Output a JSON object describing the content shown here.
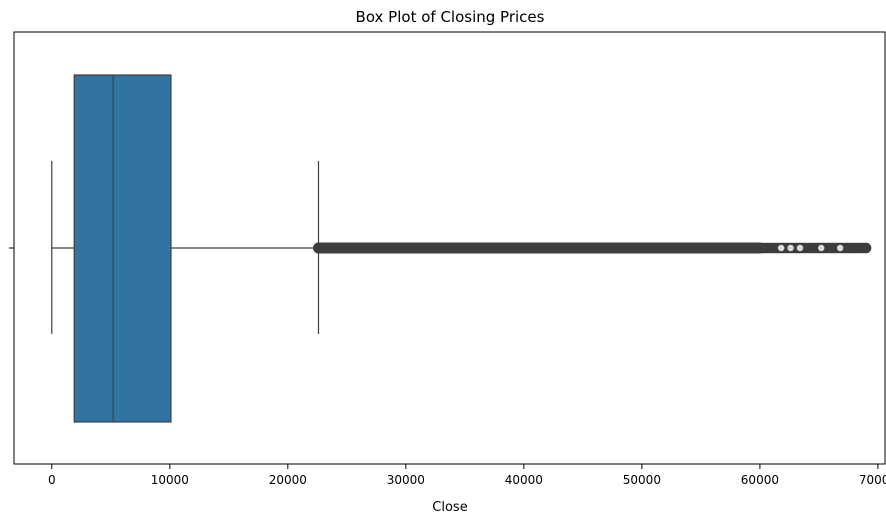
{
  "chart_data": {
    "type": "box",
    "title": "Box Plot of Closing Prices",
    "xlabel": "Close",
    "ylabel": "",
    "orientation": "horizontal",
    "xlim": [
      -3200,
      70600
    ],
    "xticks": [
      0,
      10000,
      20000,
      30000,
      40000,
      50000,
      60000,
      70000
    ],
    "xtick_labels": [
      "0",
      "10000",
      "20000",
      "30000",
      "40000",
      "50000",
      "60000",
      "70000"
    ],
    "box": {
      "whisker_low": 0,
      "q1": 1900,
      "median": 5200,
      "q3": 10100,
      "whisker_high": 22600
    },
    "outliers_range": [
      22600,
      69000
    ],
    "outliers_sparse_region": [
      60000,
      69000
    ],
    "grid": false,
    "colors": {
      "box_fill": "#3274a1",
      "line": "#3f3f3f",
      "outlier": "#3d3d3d"
    }
  }
}
